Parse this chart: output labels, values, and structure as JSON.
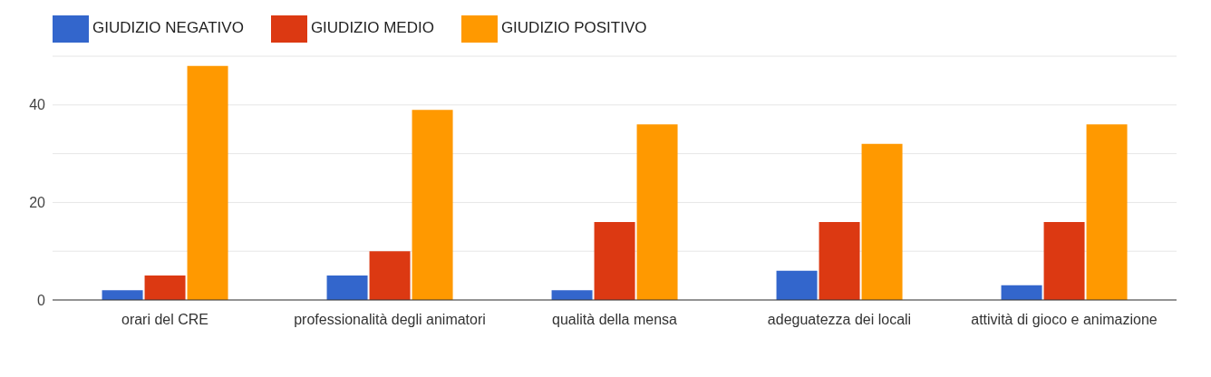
{
  "chart_data": {
    "type": "bar",
    "categories": [
      "orari del CRE",
      "professionalità degli animatori",
      "qualità della mensa",
      "adeguatezza dei locali",
      "attività di gioco e animazione"
    ],
    "series": [
      {
        "name": "GIUDIZIO NEGATIVO",
        "color": "#3366cc",
        "values": [
          2,
          5,
          2,
          6,
          3
        ]
      },
      {
        "name": "GIUDIZIO MEDIO",
        "color": "#dc3912",
        "values": [
          5,
          10,
          16,
          16,
          16
        ]
      },
      {
        "name": "GIUDIZIO POSITIVO",
        "color": "#ff9900",
        "values": [
          48,
          39,
          36,
          32,
          36
        ]
      }
    ],
    "ylim": [
      0,
      50
    ],
    "yticks": [
      0,
      {
        "value": 10,
        "label": null
      },
      20,
      {
        "value": 30,
        "label": null
      },
      40
    ],
    "grid": "y",
    "legend": "top left"
  }
}
